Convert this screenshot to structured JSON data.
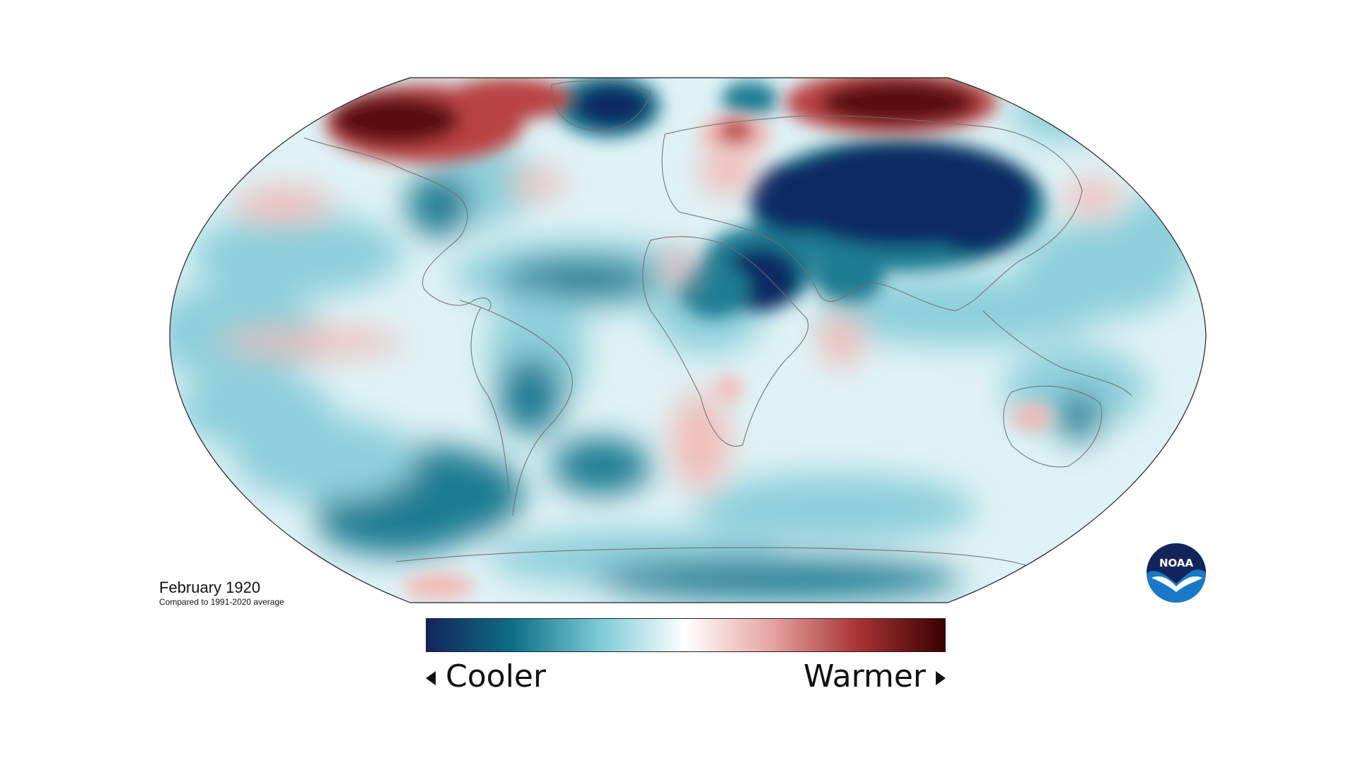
{
  "caption": {
    "title": "February 1920",
    "subtitle": "Compared to 1991-2020 average"
  },
  "legend": {
    "cool_label": "Cooler",
    "warm_label": "Warmer",
    "colors": [
      "#13245a",
      "#0d6f86",
      "#7ccbd6",
      "#ffffff",
      "#e6a3a0",
      "#a83332",
      "#3a0000"
    ]
  },
  "logo": {
    "text": "NOAA",
    "icon": "noaa-logo-icon"
  },
  "palette": {
    "ocean_base": "#dff2f5",
    "cool_strong": "#102a63",
    "cool_mid": "#1b7b92",
    "cool_light": "#8fd0db",
    "warm_light": "#f2bcb8",
    "warm_mid": "#b94242",
    "warm_strong": "#5a0a08",
    "coastline": "#6e6e6e"
  }
}
